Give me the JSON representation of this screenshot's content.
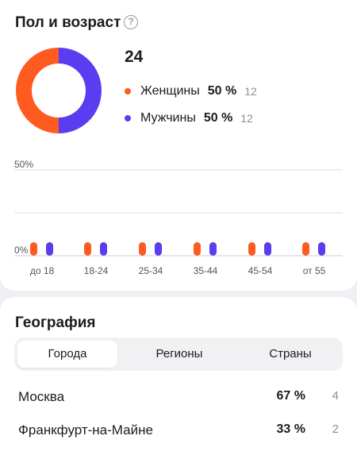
{
  "gender_card": {
    "title": "Пол и возраст",
    "help_icon": "question-circle-icon",
    "total": "24",
    "legend": [
      {
        "name": "Женщины",
        "percent": "50 %",
        "count": "12",
        "color": "#ff5a1f"
      },
      {
        "name": "Мужчины",
        "percent": "50 %",
        "count": "12",
        "color": "#5b3cf0"
      }
    ]
  },
  "chart_data": [
    {
      "type": "pie",
      "categories": [
        "Женщины",
        "Мужчины"
      ],
      "values": [
        50,
        50
      ],
      "colors": [
        "#ff5a1f",
        "#5b3cf0"
      ]
    },
    {
      "type": "bar",
      "categories": [
        "до 18",
        "18-24",
        "25-34",
        "35-44",
        "45-54",
        "от 55"
      ],
      "series": [
        {
          "name": "Женщины",
          "values": [
            0,
            0,
            0,
            0,
            0,
            0
          ],
          "color": "#ff5a1f"
        },
        {
          "name": "Мужчины",
          "values": [
            0,
            0,
            0,
            0,
            0,
            0
          ],
          "color": "#5b3cf0"
        }
      ],
      "y_ticks": [
        "50%",
        "0%"
      ],
      "ylim": [
        0,
        50
      ],
      "grid": true
    }
  ],
  "geo_card": {
    "title": "География",
    "tabs": [
      {
        "label": "Города",
        "active": true
      },
      {
        "label": "Регионы",
        "active": false
      },
      {
        "label": "Страны",
        "active": false
      }
    ],
    "rows": [
      {
        "name": "Москва",
        "percent": "67 %",
        "count": "4"
      },
      {
        "name": "Франкфурт-на-Майне",
        "percent": "33 %",
        "count": "2"
      }
    ]
  }
}
